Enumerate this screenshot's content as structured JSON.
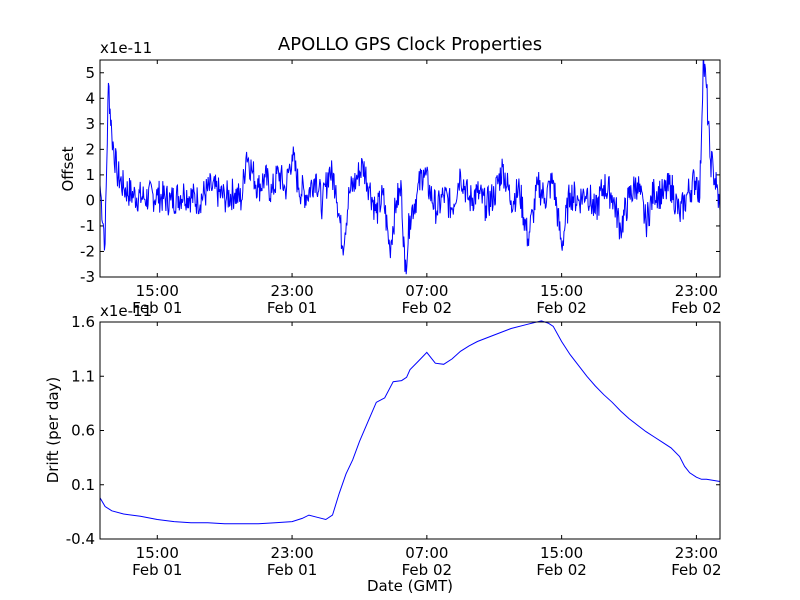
{
  "title": "APOLLO GPS Clock Properties",
  "chart_data": [
    {
      "type": "line",
      "ylabel": "Offset",
      "xlabel": "",
      "scale_label": "x1e-11",
      "ylim": [
        -3,
        5.5
      ],
      "xlim": [
        11.6,
        48.4
      ],
      "yticks": [
        5,
        4,
        3,
        2,
        1,
        0,
        -1,
        -2,
        -3
      ],
      "ytick_labels": [
        "5",
        "4",
        "3",
        "2",
        "1",
        "0",
        "-1",
        "-2",
        "-3"
      ],
      "xticks": [
        15,
        23,
        31,
        39,
        47
      ],
      "xtick_labels": [
        [
          "15:00",
          "Feb 01"
        ],
        [
          "23:00",
          "Feb 01"
        ],
        [
          "07:00",
          "Feb 02"
        ],
        [
          "15:00",
          "Feb 02"
        ],
        [
          "23:00",
          "Feb 02"
        ]
      ],
      "color": "#0000ff",
      "series": [
        {
          "x": [
            11.6,
            11.9,
            12.1,
            12.3,
            12.6,
            13.0,
            13.6,
            14.2,
            15.0,
            15.8,
            16.6,
            17.4,
            18.2,
            19.0,
            19.6,
            20.0,
            20.3,
            20.6,
            21.0,
            21.4,
            21.8,
            22.2,
            22.6,
            23.0,
            23.4,
            23.9,
            24.4,
            24.8,
            25.2,
            25.6,
            26.0,
            26.4,
            26.8,
            27.2,
            27.6,
            28.0,
            28.4,
            28.8,
            29.2,
            29.5,
            29.7,
            30.0,
            30.4,
            30.8,
            31.2,
            31.6,
            32.0,
            32.5,
            33.0,
            33.5,
            34.0,
            34.5,
            35.0,
            35.5,
            36.0,
            36.5,
            37.0,
            37.3,
            37.6,
            38.0,
            38.5,
            39.0,
            39.5,
            40.0,
            40.5,
            41.0,
            41.5,
            42.0,
            42.5,
            43.0,
            43.5,
            44.0,
            44.5,
            45.0,
            45.5,
            46.0,
            46.5,
            47.0,
            47.2,
            47.4,
            47.6,
            47.8,
            48.0,
            48.2,
            48.4
          ],
          "y": [
            0.6,
            -1.7,
            4.6,
            2.6,
            1.1,
            0.5,
            0.2,
            0.1,
            0.2,
            0.0,
            0.3,
            0.0,
            0.5,
            0.1,
            0.3,
            0.0,
            1.9,
            1.2,
            0.5,
            0.9,
            0.3,
            1.1,
            0.4,
            1.8,
            0.5,
            0.2,
            1.0,
            -0.2,
            1.2,
            0.6,
            -1.8,
            0.3,
            0.8,
            1.4,
            0.5,
            -0.5,
            0.2,
            -1.9,
            0.0,
            0.4,
            -2.8,
            -0.6,
            0.2,
            1.2,
            0.3,
            -0.4,
            0.2,
            -0.3,
            1.1,
            0.0,
            0.3,
            -0.2,
            0.2,
            1.3,
            0.0,
            0.4,
            -1.5,
            -0.5,
            0.6,
            0.1,
            0.8,
            -1.8,
            0.3,
            0.0,
            0.4,
            -0.5,
            0.6,
            0.2,
            -1.1,
            0.1,
            0.7,
            -0.9,
            0.4,
            0.2,
            0.6,
            -0.6,
            0.3,
            0.9,
            0.1,
            5.5,
            4.4,
            1.7,
            1.2,
            0.5,
            -0.4
          ]
        }
      ]
    },
    {
      "type": "line",
      "ylabel": "Drift (per day)",
      "xlabel": "Date (GMT)",
      "scale_label": "x1e-11",
      "ylim": [
        -0.4,
        1.6
      ],
      "xlim": [
        11.6,
        48.4
      ],
      "yticks": [
        1.6,
        1.1,
        0.6,
        0.1,
        -0.4
      ],
      "ytick_labels": [
        "1.6",
        "1.1",
        "0.6",
        "0.1",
        "-0.4"
      ],
      "xticks": [
        15,
        23,
        31,
        39,
        47
      ],
      "xtick_labels": [
        [
          "15:00",
          "Feb 01"
        ],
        [
          "23:00",
          "Feb 01"
        ],
        [
          "07:00",
          "Feb 02"
        ],
        [
          "15:00",
          "Feb 02"
        ],
        [
          "23:00",
          "Feb 02"
        ]
      ],
      "color": "#0000ff",
      "series": [
        {
          "x": [
            11.6,
            11.9,
            12.3,
            13.0,
            14.0,
            15.0,
            16.0,
            17.0,
            18.0,
            19.0,
            20.0,
            21.0,
            22.0,
            23.0,
            23.6,
            24.0,
            24.5,
            25.0,
            25.4,
            25.8,
            26.2,
            26.6,
            27.0,
            27.5,
            28.0,
            28.5,
            29.0,
            29.5,
            29.8,
            30.0,
            30.5,
            31.0,
            31.5,
            32.0,
            32.5,
            33.0,
            33.5,
            34.0,
            35.0,
            36.0,
            37.0,
            37.8,
            38.2,
            38.5,
            39.0,
            39.5,
            40.0,
            40.5,
            41.0,
            41.5,
            42.0,
            42.5,
            43.0,
            43.5,
            44.0,
            44.5,
            45.0,
            45.5,
            46.0,
            46.3,
            46.6,
            47.0,
            47.3,
            47.6,
            48.0,
            48.4
          ],
          "y": [
            -0.02,
            -0.1,
            -0.14,
            -0.17,
            -0.19,
            -0.22,
            -0.24,
            -0.25,
            -0.25,
            -0.26,
            -0.26,
            -0.26,
            -0.25,
            -0.24,
            -0.21,
            -0.18,
            -0.2,
            -0.22,
            -0.18,
            0.02,
            0.2,
            0.33,
            0.5,
            0.68,
            0.86,
            0.9,
            1.05,
            1.06,
            1.09,
            1.16,
            1.24,
            1.32,
            1.22,
            1.21,
            1.26,
            1.33,
            1.38,
            1.42,
            1.48,
            1.54,
            1.58,
            1.61,
            1.59,
            1.56,
            1.42,
            1.3,
            1.2,
            1.1,
            1.01,
            0.93,
            0.86,
            0.78,
            0.71,
            0.65,
            0.59,
            0.54,
            0.49,
            0.44,
            0.36,
            0.27,
            0.21,
            0.17,
            0.15,
            0.15,
            0.14,
            0.13
          ]
        }
      ]
    }
  ]
}
